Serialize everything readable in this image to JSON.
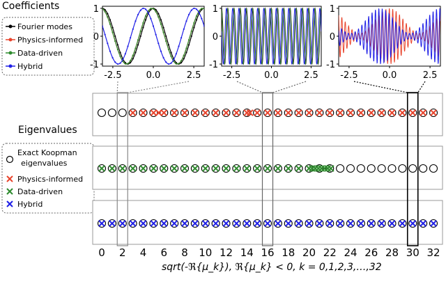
{
  "labels": {
    "coefficients": "Coefficients",
    "eigenvalues": "Eigenvalues"
  },
  "legend_top": [
    {
      "label": "Fourier modes",
      "color": "#000000",
      "marker": "line-dot"
    },
    {
      "label": "Physics-informed",
      "color": "#e8432b",
      "marker": "line-dot"
    },
    {
      "label": "Data-driven",
      "color": "#2e8b2e",
      "marker": "line-dot"
    },
    {
      "label": "Hybrid",
      "color": "#1f1fe6",
      "marker": "line-dot"
    }
  ],
  "legend_bottom": [
    {
      "label": "Exact Koopman\neigenvalues",
      "marker": "circle",
      "color": "#000000"
    },
    {
      "label": "Physics-informed",
      "marker": "cross",
      "color": "#e8432b"
    },
    {
      "label": "Data-driven",
      "marker": "cross",
      "color": "#2e8b2e"
    },
    {
      "label": "Hybrid",
      "marker": "cross",
      "color": "#1f1fe6"
    }
  ],
  "chart_data": [
    {
      "type": "line",
      "x_range": [
        -3.14159,
        3.14159
      ],
      "ylim": [
        -1,
        1
      ],
      "xticks": [
        "-2.5",
        "0.0",
        "2.5"
      ],
      "yticks": [
        "1",
        "0",
        "-1"
      ],
      "mode": 2,
      "series": [
        {
          "name": "Fourier modes",
          "color": "#000000",
          "phase": 0.0
        },
        {
          "name": "Physics-informed",
          "color": "#e8432b",
          "phase": 0.18
        },
        {
          "name": "Data-driven",
          "color": "#2e8b2e",
          "phase": 0.18
        },
        {
          "name": "Hybrid",
          "color": "#1f1fe6",
          "phase": 1.2
        }
      ]
    },
    {
      "type": "line",
      "x_range": [
        -3.14159,
        3.14159
      ],
      "ylim": [
        -1,
        1
      ],
      "xticks": [
        "-2.5",
        "0.0",
        "2.5"
      ],
      "yticks": [
        "1",
        "0",
        "-1"
      ],
      "mode": 16,
      "series": [
        {
          "name": "Fourier modes",
          "color": "#000000",
          "phase": 0.0
        },
        {
          "name": "Physics-informed",
          "color": "#e8432b",
          "phase": 0.3
        },
        {
          "name": "Data-driven",
          "color": "#2e8b2e",
          "phase": 0.3
        },
        {
          "name": "Hybrid",
          "color": "#1f1fe6",
          "phase": 1.4
        }
      ]
    },
    {
      "type": "line",
      "x_range": [
        -3.14159,
        3.14159
      ],
      "ylim": [
        -1,
        1
      ],
      "xticks": [
        "-2.5",
        "0.0",
        "2.5"
      ],
      "yticks": [
        "1",
        "0",
        "-1"
      ],
      "mode": 30,
      "series": [
        {
          "name": "Physics-informed",
          "color": "#e8432b",
          "phase": 0.4
        },
        {
          "name": "Hybrid",
          "color": "#1f1fe6",
          "phase": 1.0
        }
      ]
    },
    {
      "type": "scatter",
      "xlim": [
        0,
        32
      ],
      "xticks": [
        0,
        2,
        4,
        6,
        8,
        10,
        12,
        14,
        16,
        18,
        20,
        22,
        24,
        26,
        28,
        30,
        32
      ],
      "xlabel": "sqrt(-ℜ{μ_k}),  ℜ{μ_k} < 0, k = 0,1,2,3,…,32",
      "highlight_modes": [
        2,
        16,
        30
      ],
      "rows": [
        {
          "name": "Physics-informed",
          "exact_eigenvalues": [
            0,
            1,
            2,
            3,
            4,
            5,
            6,
            7,
            8,
            9,
            10,
            11,
            12,
            13,
            14,
            15,
            16,
            17,
            18,
            19,
            20,
            21,
            22,
            23,
            24,
            25,
            26,
            27,
            28,
            29,
            30,
            31,
            32
          ],
          "predicted": [
            3,
            4,
            5,
            5.5,
            6,
            7,
            8,
            9,
            10,
            11,
            12,
            13,
            14,
            14.3,
            15,
            16,
            17,
            18,
            19,
            20,
            21,
            22,
            23,
            24,
            25,
            26,
            27,
            28,
            29,
            30,
            31,
            32
          ],
          "color": "#e8432b"
        },
        {
          "name": "Data-driven",
          "exact_eigenvalues": [
            0,
            1,
            2,
            3,
            4,
            5,
            6,
            7,
            8,
            9,
            10,
            11,
            12,
            13,
            14,
            15,
            16,
            17,
            18,
            19,
            20,
            21,
            22,
            23,
            24,
            25,
            26,
            27,
            28,
            29,
            30,
            31,
            32
          ],
          "predicted": [
            0,
            1,
            2,
            3,
            4,
            5,
            6,
            7,
            8,
            9,
            10,
            11,
            12,
            13,
            14,
            15,
            16,
            17,
            18,
            19,
            20,
            20.3,
            20.6,
            20.9,
            21.2,
            21.5,
            21.8,
            22.1
          ],
          "color": "#2e8b2e"
        },
        {
          "name": "Hybrid",
          "exact_eigenvalues": [
            0,
            1,
            2,
            3,
            4,
            5,
            6,
            7,
            8,
            9,
            10,
            11,
            12,
            13,
            14,
            15,
            16,
            17,
            18,
            19,
            20,
            21,
            22,
            23,
            24,
            25,
            26,
            27,
            28,
            29,
            30,
            31,
            32
          ],
          "predicted": [
            0,
            1,
            2,
            3,
            4,
            5,
            6,
            7,
            8,
            9,
            10,
            11,
            12,
            13,
            14,
            15,
            16,
            17,
            18,
            19,
            20,
            21,
            22,
            23,
            24,
            25,
            26,
            27,
            28,
            29,
            30,
            31,
            32
          ],
          "color": "#1f1fe6"
        }
      ]
    }
  ]
}
